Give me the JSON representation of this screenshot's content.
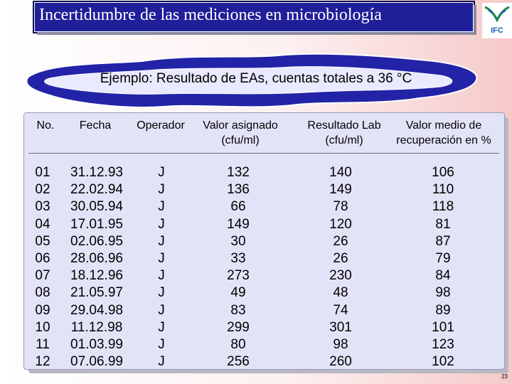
{
  "title": "Incertidumbre de las mediciones en microbiología",
  "logo_text": "IFC",
  "subtitle": "Ejemplo: Resultado de EAs, cuentas totales a 36 °C",
  "headers": {
    "no": "No.",
    "fecha": "Fecha",
    "operador": "Operador",
    "valor_line1": "Valor asignado",
    "valor_line2": "(cfu/ml)",
    "resultado_line1": "Resultado Lab",
    "resultado_line2": "(cfu/ml)",
    "medio_line1": "Valor medio de",
    "medio_line2": "recuperación en %"
  },
  "rows": [
    {
      "no": "01",
      "fecha": "31.12.93",
      "operador": "J",
      "valor": "132",
      "resultado": "140",
      "medio": "106"
    },
    {
      "no": "02",
      "fecha": "22.02.94",
      "operador": "J",
      "valor": "136",
      "resultado": "149",
      "medio": "110"
    },
    {
      "no": "03",
      "fecha": "30.05.94",
      "operador": "J",
      "valor": "66",
      "resultado": "78",
      "medio": "118"
    },
    {
      "no": "04",
      "fecha": "17.01.95",
      "operador": "J",
      "valor": "149",
      "resultado": "120",
      "medio": "81"
    },
    {
      "no": "05",
      "fecha": "02.06.95",
      "operador": "J",
      "valor": "30",
      "resultado": "26",
      "medio": "87"
    },
    {
      "no": "06",
      "fecha": "28.06.96",
      "operador": "J",
      "valor": "33",
      "resultado": "26",
      "medio": "79"
    },
    {
      "no": "07",
      "fecha": "18.12.96",
      "operador": "J",
      "valor": "273",
      "resultado": "230",
      "medio": "84"
    },
    {
      "no": "08",
      "fecha": "21.05.97",
      "operador": "J",
      "valor": "49",
      "resultado": "48",
      "medio": "98"
    },
    {
      "no": "09",
      "fecha": "29.04.98",
      "operador": "J",
      "valor": "83",
      "resultado": "74",
      "medio": "89"
    },
    {
      "no": "10",
      "fecha": "11.12.98",
      "operador": "J",
      "valor": "299",
      "resultado": "301",
      "medio": "101"
    },
    {
      "no": "11",
      "fecha": "01.03.99",
      "operador": "J",
      "valor": "80",
      "resultado": "98",
      "medio": "123"
    },
    {
      "no": "12",
      "fecha": "07.06.99",
      "operador": "J",
      "valor": "256",
      "resultado": "260",
      "medio": "102"
    }
  ],
  "page_number": "23",
  "colors": {
    "title_bg": "#1f1f9a",
    "cloud_fill": "#2323a8",
    "panel_bg": "#e3e3f8",
    "logo_green": "#1a8a3a",
    "logo_blue": "#1c5fb8"
  }
}
